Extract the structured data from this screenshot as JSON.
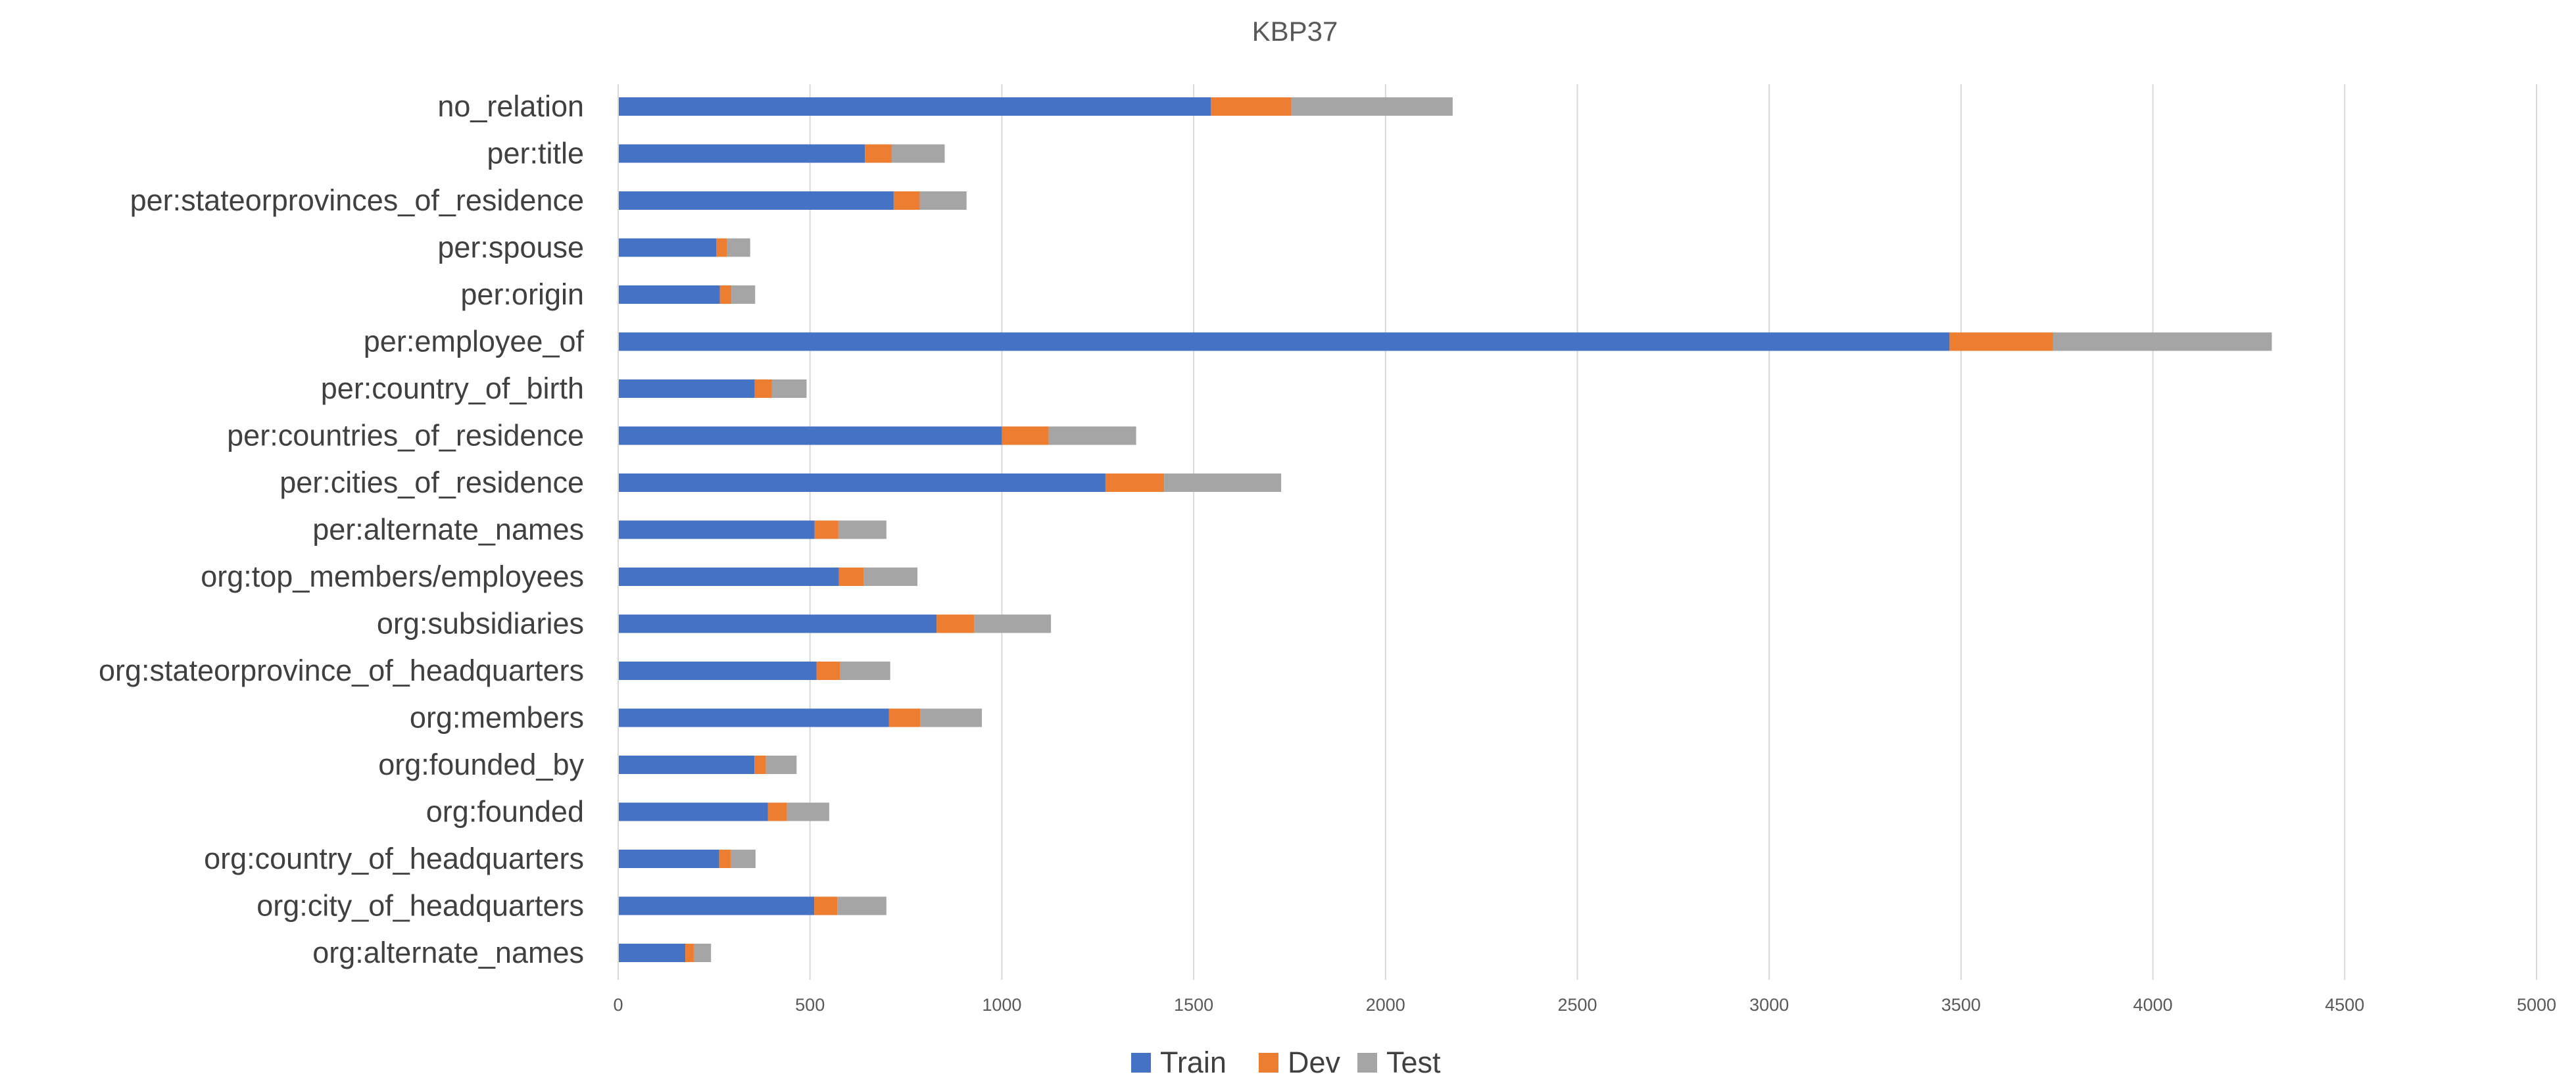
{
  "chart_data": {
    "type": "bar",
    "orientation": "horizontal",
    "stacked": true,
    "title": "KBP37",
    "xlabel": "",
    "ylabel": "",
    "xlim": [
      0,
      5000
    ],
    "xticks": [
      0,
      500,
      1000,
      1500,
      2000,
      2500,
      3000,
      3500,
      4000,
      4500,
      5000
    ],
    "grid": "vertical",
    "legend": "bottom-center",
    "categories": [
      "no_relation",
      "per:title",
      "per:stateorprovinces_of_residence",
      "per:spouse",
      "per:origin",
      "per:employee_of",
      "per:country_of_birth",
      "per:countries_of_residence",
      "per:cities_of_residence",
      "per:alternate_names",
      "org:top_members/employees",
      "org:subsidiaries",
      "org:stateorprovince_of_headquarters",
      "org:members",
      "org:founded_by",
      "org:founded",
      "org:country_of_headquarters",
      "org:city_of_headquarters",
      "org:alternate_names"
    ],
    "series": [
      {
        "name": "Train",
        "color": "#4472C4",
        "values": [
          1545,
          643,
          718,
          256,
          265,
          3470,
          356,
          1000,
          1270,
          512,
          575,
          830,
          517,
          706,
          355,
          390,
          263,
          511,
          175
        ]
      },
      {
        "name": "Dev",
        "color": "#ED7D31",
        "values": [
          210,
          70,
          68,
          28,
          30,
          270,
          45,
          122,
          153,
          62,
          65,
          98,
          62,
          82,
          30,
          50,
          30,
          60,
          22
        ]
      },
      {
        "name": "Test",
        "color": "#A5A5A5",
        "values": [
          420,
          138,
          122,
          60,
          62,
          570,
          90,
          228,
          305,
          125,
          140,
          200,
          130,
          160,
          80,
          110,
          65,
          128,
          45
        ]
      }
    ]
  }
}
